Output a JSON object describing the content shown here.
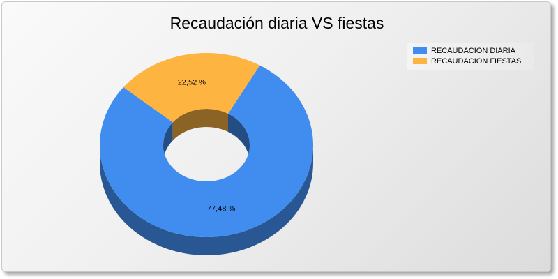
{
  "chart_data": {
    "type": "pie",
    "variant": "doughnut-3d",
    "title": "Recaudación diaria VS fiestas",
    "series": [
      {
        "name": "RECAUDACION DIARIA",
        "value": 77.48,
        "label": "77,48 %",
        "color": "#418DEF"
      },
      {
        "name": "RECAUDACION FIESTAS",
        "value": 22.52,
        "label": "22,52 %",
        "color": "#FDB441"
      }
    ],
    "legend_position": "top-right"
  }
}
